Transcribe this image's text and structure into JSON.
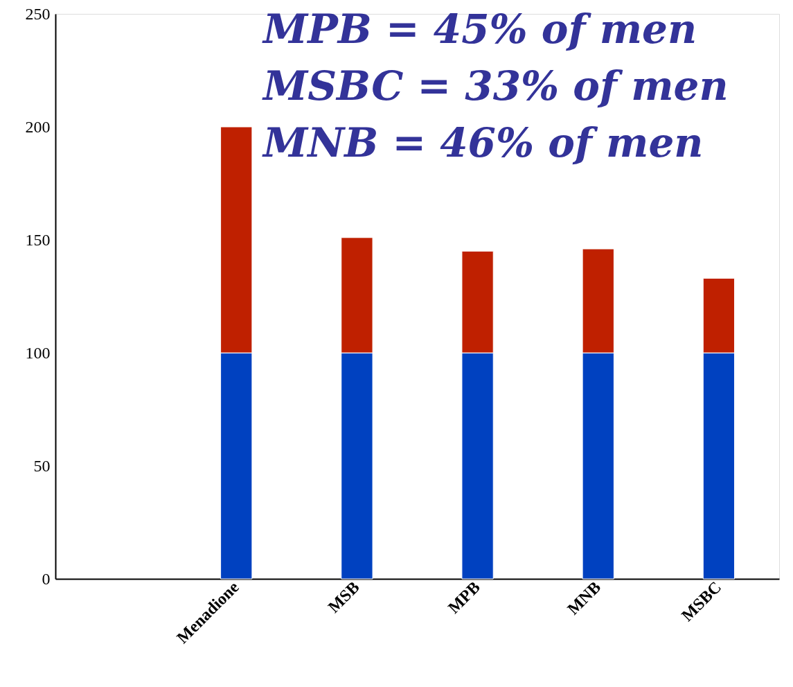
{
  "chart_data": {
    "type": "bar",
    "stacked": true,
    "categories": [
      null,
      "Menadione",
      "MSB",
      "MPB",
      "MNB",
      "MSBC"
    ],
    "series": [
      {
        "color": "#0041c0",
        "values": [
          null,
          100,
          100,
          100,
          100,
          100
        ]
      },
      {
        "color": "#bf2000",
        "values": [
          null,
          100,
          51,
          45,
          46,
          33
        ]
      }
    ],
    "ylim": [
      0,
      250
    ],
    "yticks": [
      0,
      50,
      100,
      150,
      200,
      250
    ],
    "grid": false,
    "annotations": [
      "MPB = 45% of men",
      "MSBC = 33% of men",
      "MNB = 46% of men"
    ]
  }
}
